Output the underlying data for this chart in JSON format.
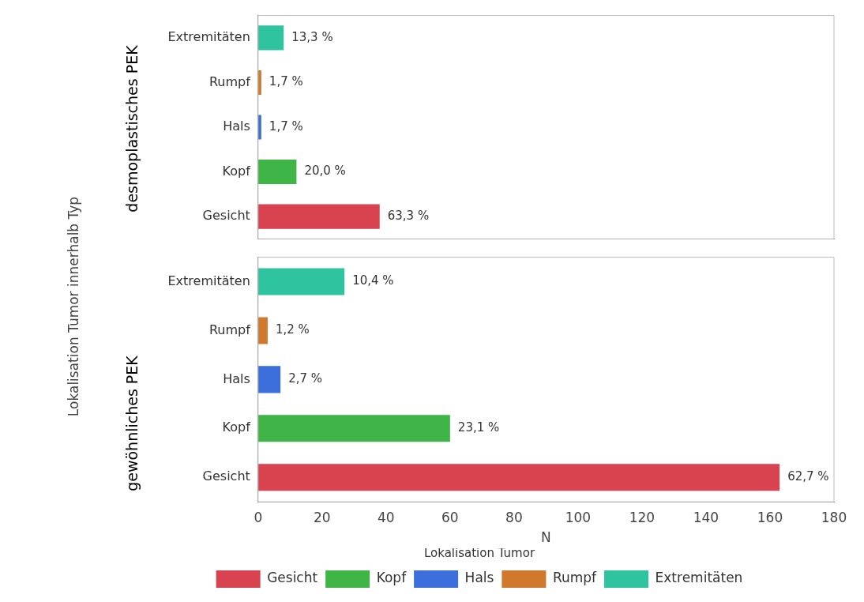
{
  "chart_data": [
    {
      "type": "bar",
      "orientation": "horizontal",
      "title": "desmoplastisches PEK",
      "ylabel": "Lokalisation Tumor innerhalb Typ",
      "categories": [
        "Extremitäten",
        "Rumpf",
        "Hals",
        "Kopf",
        "Gesicht"
      ],
      "series": [
        {
          "color": "#d9424f",
          "values": [
            null,
            null,
            null,
            null,
            38
          ]
        },
        {
          "color": "#3fb548",
          "values": [
            null,
            null,
            null,
            12,
            null
          ]
        },
        {
          "color": "#3c6fdc",
          "values": [
            null,
            null,
            1,
            null,
            null
          ]
        },
        {
          "color": "#d0782c",
          "values": [
            null,
            1,
            null,
            null,
            null
          ]
        },
        {
          "color": "#2ec4a0",
          "values": [
            8,
            null,
            null,
            null,
            null
          ]
        }
      ],
      "annotations": [
        {
          "text": "13,3 %",
          "x": 8,
          "y": "Extremitäten"
        },
        {
          "text": "1,7 %",
          "x": 1,
          "y": "Rumpf"
        },
        {
          "text": "1,7 %",
          "x": 1,
          "y": "Hals"
        },
        {
          "text": "20,0 %",
          "x": 12,
          "y": "Kopf"
        },
        {
          "text": "63,3 %",
          "x": 38,
          "y": "Gesicht"
        }
      ],
      "xlim": [
        0,
        180
      ],
      "xticks": [
        0,
        20,
        40,
        60,
        80,
        100,
        120,
        140,
        160,
        180
      ],
      "tick_labels": "y"
    },
    {
      "type": "bar",
      "orientation": "horizontal",
      "title": "gewöhnliches PEK",
      "xlabel": "N",
      "legend": "bottom",
      "legend_title": "Lokalisation Tumor",
      "categories": [
        "Extremitäten",
        "Rumpf",
        "Hals",
        "Kopf",
        "Gesicht"
      ],
      "series": [
        {
          "name": "Gesicht",
          "color": "#d9424f",
          "values": [
            null,
            null,
            null,
            null,
            163
          ]
        },
        {
          "name": "Kopf",
          "color": "#3fb548",
          "values": [
            null,
            null,
            null,
            60,
            null
          ]
        },
        {
          "name": "Hals",
          "color": "#3c6fdc",
          "values": [
            null,
            null,
            7,
            null,
            null
          ]
        },
        {
          "name": "Rumpf",
          "color": "#d0782c",
          "values": [
            null,
            3,
            null,
            null,
            null
          ]
        },
        {
          "name": "Extremitäten",
          "color": "#2ec4a0",
          "values": [
            27,
            null,
            null,
            null,
            null
          ]
        }
      ],
      "annotations": [
        {
          "text": "10,4 %",
          "x": 27,
          "y": "Extremitäten"
        },
        {
          "text": "1,2 %",
          "x": 3,
          "y": "Rumpf"
        },
        {
          "text": "2,7 %",
          "x": 7,
          "y": "Hals"
        },
        {
          "text": "23,1 %",
          "x": 60,
          "y": "Kopf"
        },
        {
          "text": "62,7 %",
          "x": 163,
          "y": "Gesicht"
        }
      ],
      "xlim": [
        0,
        180
      ],
      "xticks": [
        0,
        20,
        40,
        60,
        80,
        100,
        120,
        140,
        160,
        180
      ]
    }
  ]
}
